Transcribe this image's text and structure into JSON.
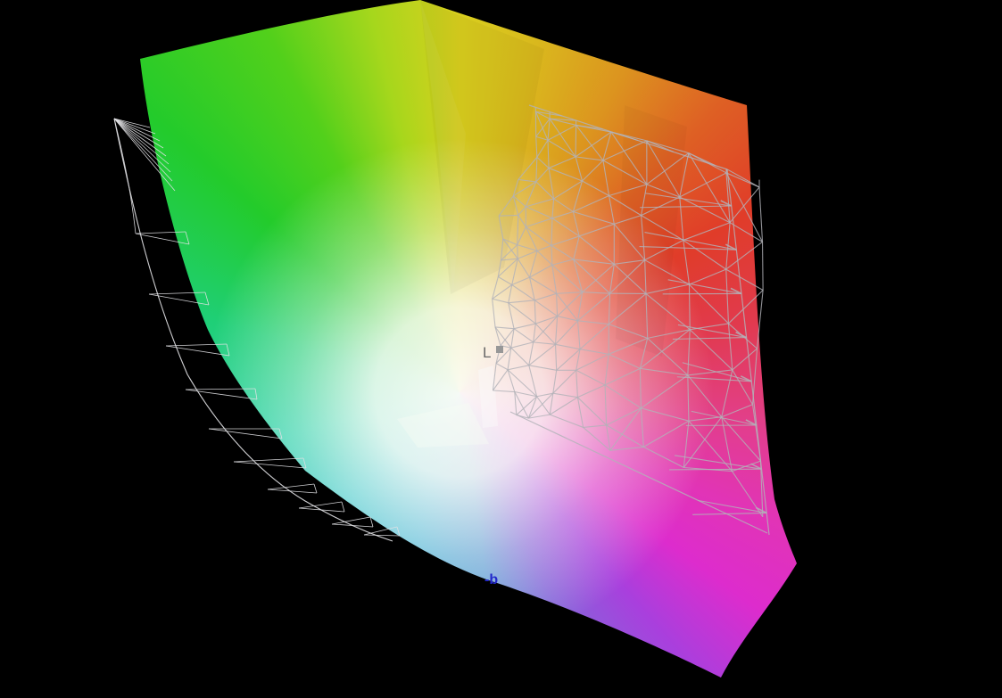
{
  "scene": {
    "description": "3D CIELAB color gamut comparison view: filled color-space solid with gray comparison-gamut wireframe on black background",
    "background_color": "#000000"
  },
  "axis_labels": {
    "lightness": {
      "text": "L",
      "color": "#676767"
    },
    "lightness_marker_color": "#979797",
    "blue_negative": {
      "text": "-b",
      "color": "#2328cb"
    }
  },
  "wireframe": {
    "mesh_color": "rgba(178,178,184,0.82)",
    "outline_color": "rgba(225,225,228,0.92)"
  },
  "chart_data": {
    "type": "3d-color-gamut",
    "title": "",
    "axis_labels_visible": [
      "L",
      "-b"
    ],
    "axes_hidden_or_occluded": true,
    "grid": false,
    "legend": false,
    "series": [
      {
        "name": "color-gamut-solid",
        "style": "filled-surface",
        "gamut": {
          "center": {
            "x": 515,
            "y": 440
          },
          "center_glow_stops": [
            "rgba(252,252,247,0.97) 0px",
            "rgba(252,252,247,0.85) 95px",
            "rgba(250,250,245,0.40) 185px",
            "rgba(250,250,245,0.0) 285px"
          ],
          "hue_stops": [
            {
              "angle": 0,
              "color": "#d9cf1e"
            },
            {
              "angle": 12,
              "color": "#d9b91d"
            },
            {
              "angle": 27,
              "color": "#dc941f"
            },
            {
              "angle": 42,
              "color": "#de6024"
            },
            {
              "angle": 58,
              "color": "#e03c29"
            },
            {
              "angle": 76,
              "color": "#e13a4d"
            },
            {
              "angle": 95,
              "color": "#e23f88"
            },
            {
              "angle": 112,
              "color": "#e134b6"
            },
            {
              "angle": 126,
              "color": "#dd2ccd"
            },
            {
              "angle": 140,
              "color": "#a93fdd"
            },
            {
              "angle": 156,
              "color": "#8565da"
            },
            {
              "angle": 172,
              "color": "#5a9bd5"
            },
            {
              "angle": 196,
              "color": "#3fb2d6"
            },
            {
              "angle": 226,
              "color": "#2fc5ca"
            },
            {
              "angle": 256,
              "color": "#2bd2ab"
            },
            {
              "angle": 286,
              "color": "#1fcf77"
            },
            {
              "angle": 312,
              "color": "#23cb2b"
            },
            {
              "angle": 332,
              "color": "#52d01b"
            },
            {
              "angle": 347,
              "color": "#a6d71c"
            },
            {
              "angle": 360,
              "color": "#d9cf1e"
            }
          ]
        }
      },
      {
        "name": "comparison-gamut-wireframe",
        "style": "wireframe"
      }
    ]
  }
}
